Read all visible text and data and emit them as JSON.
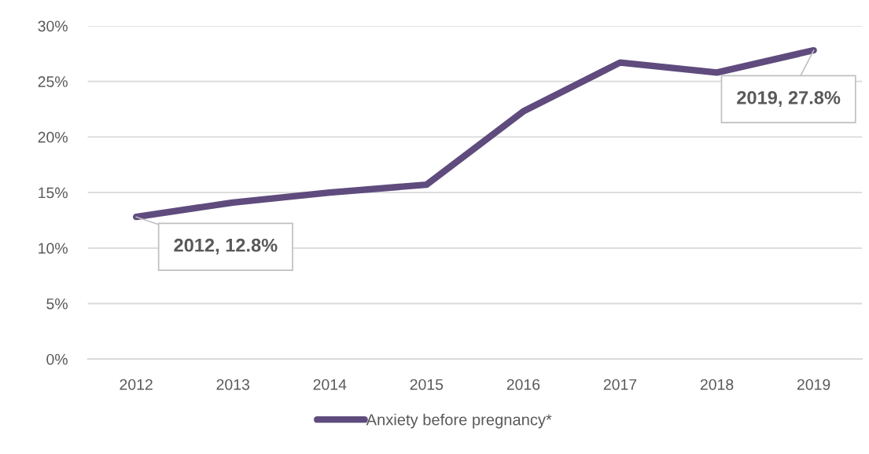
{
  "chart_data": {
    "type": "line",
    "categories": [
      "2012",
      "2013",
      "2014",
      "2015",
      "2016",
      "2017",
      "2018",
      "2019"
    ],
    "series": [
      {
        "name": "Anxiety before pregnancy*",
        "color": "#5f4b7d",
        "values": [
          12.8,
          14.1,
          15.0,
          15.7,
          22.3,
          26.7,
          25.8,
          27.8
        ]
      }
    ],
    "ylim": [
      0,
      30
    ],
    "yticks": [
      {
        "value": 0,
        "label": "0%"
      },
      {
        "value": 5,
        "label": "5%"
      },
      {
        "value": 10,
        "label": "10%"
      },
      {
        "value": 15,
        "label": "15%"
      },
      {
        "value": 20,
        "label": "20%"
      },
      {
        "value": 25,
        "label": "25%"
      },
      {
        "value": 30,
        "label": "30%"
      }
    ],
    "annotations": [
      {
        "text": "2012, 12.8%",
        "x": "2012",
        "y": 12.8
      },
      {
        "text": "2019, 27.8%",
        "x": "2019",
        "y": 27.8
      }
    ],
    "grid": "y",
    "legend": "bottom",
    "marker": "none",
    "line_style": "solid"
  }
}
